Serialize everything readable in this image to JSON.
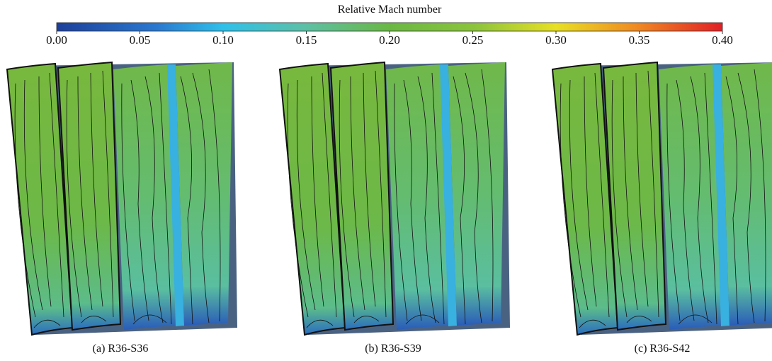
{
  "colorbar": {
    "title": "Relative Mach number",
    "range": [
      0,
      0.4
    ],
    "ticks": [
      {
        "value": 0,
        "label": "0.00"
      },
      {
        "value": 0.05,
        "label": "0.05"
      },
      {
        "value": 0.1,
        "label": "0.10"
      },
      {
        "value": 0.15,
        "label": "0.15"
      },
      {
        "value": 0.2,
        "label": "0.20"
      },
      {
        "value": 0.25,
        "label": "0.25"
      },
      {
        "value": 0.3,
        "label": "0.30"
      },
      {
        "value": 0.35,
        "label": "0.35"
      },
      {
        "value": 0.4,
        "label": "0.40"
      }
    ]
  },
  "panels": [
    {
      "caption": "(a) R36-S36"
    },
    {
      "caption": "(b) R36-S39"
    },
    {
      "caption": "(c) R36-S42"
    }
  ]
}
